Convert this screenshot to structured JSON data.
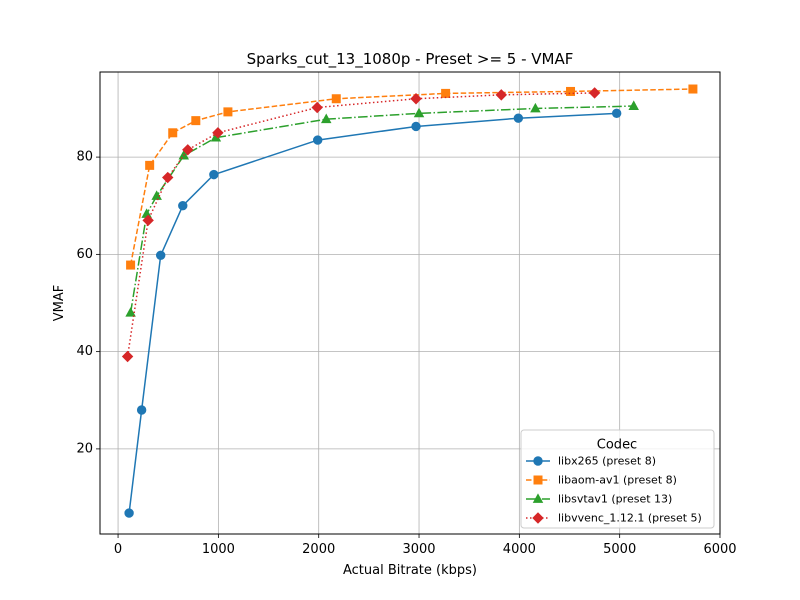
{
  "chart_data": {
    "type": "line",
    "title": "Sparks_cut_13_1080p - Preset >= 5 - VMAF",
    "xlabel": "Actual Bitrate (kbps)",
    "ylabel": "VMAF",
    "xlim": [
      -180,
      6000
    ],
    "ylim": [
      2.5,
      97.5
    ],
    "xticks": [
      0,
      1000,
      2000,
      3000,
      4000,
      5000,
      6000
    ],
    "yticks": [
      20,
      40,
      60,
      80
    ],
    "grid": true,
    "legend": {
      "title": "Codec",
      "position": "lower-right"
    },
    "series": [
      {
        "name": "libx265 (preset 8)",
        "color": "#1f77b4",
        "marker": "circle",
        "linestyle": "solid",
        "x": [
          110,
          235,
          425,
          645,
          955,
          1990,
          2970,
          3990,
          4970
        ],
        "y": [
          6.8,
          28.0,
          59.8,
          70.0,
          76.4,
          83.5,
          86.3,
          88.0,
          89.0
        ]
      },
      {
        "name": "libaom-av1 (preset 8)",
        "color": "#ff7f0e",
        "marker": "square",
        "linestyle": "dashed",
        "x": [
          125,
          315,
          545,
          775,
          1095,
          2175,
          3265,
          4510,
          5730
        ],
        "y": [
          57.8,
          78.3,
          85.0,
          87.5,
          89.3,
          92.0,
          93.1,
          93.5,
          94.0
        ]
      },
      {
        "name": "libsvtav1 (preset 13)",
        "color": "#2ca02c",
        "marker": "triangle",
        "linestyle": "dashdot",
        "x": [
          125,
          285,
          385,
          655,
          975,
          2075,
          3000,
          4160,
          5140
        ],
        "y": [
          48.0,
          68.3,
          72.0,
          80.3,
          84.0,
          87.8,
          89.0,
          90.0,
          90.5
        ]
      },
      {
        "name": "libvvenc_1.12.1 (preset 5)",
        "color": "#d62728",
        "marker": "diamond",
        "linestyle": "dotted",
        "x": [
          95,
          300,
          495,
          695,
          995,
          1985,
          2970,
          3820,
          4750
        ],
        "y": [
          39.0,
          67.0,
          75.8,
          81.5,
          85.0,
          90.2,
          92.0,
          92.8,
          93.2
        ]
      }
    ]
  }
}
